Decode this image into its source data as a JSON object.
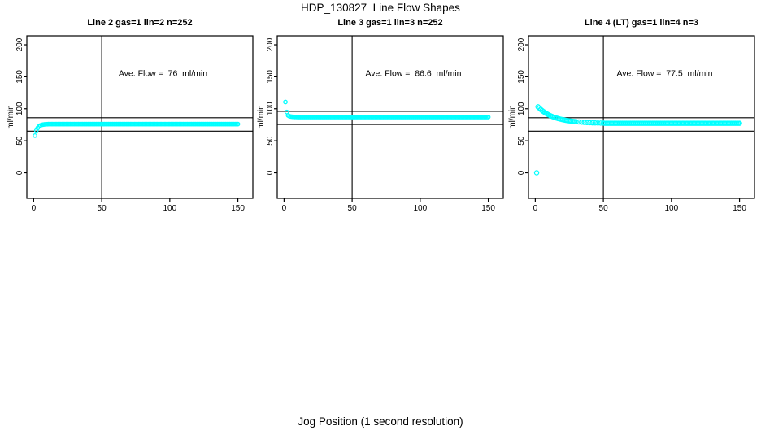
{
  "figure": {
    "title": "HDP_130827  Line Flow Shapes",
    "xlabel": "Jog Position (1 second resolution)",
    "background_color": "#ffffff",
    "point_color": "#00ffff",
    "axis_color": "#000000"
  },
  "chart_data": [
    {
      "type": "scatter",
      "title": "Line 2 gas=1 lin=2 n=252",
      "ylabel": "ml/min",
      "annotation": "Ave. Flow =  76  ml/min",
      "ave_flow_ml_min": 76,
      "n": 252,
      "xlim": [
        -5,
        161
      ],
      "ylim": [
        -40,
        214
      ],
      "xticks": [
        0,
        50,
        100,
        150
      ],
      "yticks": [
        0,
        50,
        100,
        150,
        200
      ],
      "vline_x": 50,
      "hlines": [
        86,
        65
      ],
      "point_radius": 2.2,
      "annotation_pos": [
        95,
        151
      ],
      "points": [
        [
          1,
          58
        ],
        [
          2,
          66
        ],
        [
          3,
          70
        ],
        [
          4,
          72.5
        ],
        [
          5,
          74
        ],
        [
          6,
          74.8
        ],
        [
          7,
          75.3
        ],
        [
          8,
          75.6
        ],
        [
          9,
          75.8
        ],
        [
          10,
          75.9
        ]
      ],
      "runs": [
        {
          "x_from": 11,
          "x_to": 150,
          "x_step": 1,
          "y": 76
        }
      ]
    },
    {
      "type": "scatter",
      "title": "Line 3 gas=1 lin=3 n=252",
      "ylabel": "ml/min",
      "annotation": "Ave. Flow =  86.6  ml/min",
      "ave_flow_ml_min": 86.6,
      "n": 252,
      "xlim": [
        -5,
        161
      ],
      "ylim": [
        -40,
        214
      ],
      "xticks": [
        0,
        50,
        100,
        150
      ],
      "yticks": [
        0,
        50,
        100,
        150,
        200
      ],
      "vline_x": 50,
      "hlines": [
        96,
        75.5
      ],
      "point_radius": 2.2,
      "annotation_pos": [
        95,
        151
      ],
      "points": [
        [
          1,
          110.5
        ],
        [
          2,
          95
        ],
        [
          3,
          89.5
        ],
        [
          4,
          88.3
        ],
        [
          5,
          87.8
        ],
        [
          6,
          87.5
        ],
        [
          7,
          87.3
        ],
        [
          8,
          87.2
        ],
        [
          9,
          87.1
        ],
        [
          10,
          87
        ],
        [
          11,
          87
        ]
      ],
      "runs": [
        {
          "x_from": 12,
          "x_to": 150,
          "x_step": 1,
          "y": 87
        }
      ]
    },
    {
      "type": "scatter",
      "title": "Line 4 (LT) gas=1 lin=4 n=3",
      "ylabel": "ml/min",
      "annotation": "Ave. Flow =  77.5  ml/min",
      "ave_flow_ml_min": 77.5,
      "n": 3,
      "xlim": [
        -5,
        161
      ],
      "ylim": [
        -40,
        214
      ],
      "xticks": [
        0,
        50,
        100,
        150
      ],
      "yticks": [
        0,
        50,
        100,
        150,
        200
      ],
      "vline_x": 50,
      "hlines": [
        86,
        65
      ],
      "point_radius": 2.6,
      "annotation_pos": [
        95,
        151
      ],
      "points": [
        [
          1,
          0
        ],
        [
          2,
          103
        ],
        [
          3,
          101
        ],
        [
          4,
          99
        ],
        [
          5,
          97.2
        ],
        [
          6,
          95.6
        ],
        [
          7,
          94.1
        ],
        [
          8,
          92.8
        ],
        [
          9,
          91.5
        ],
        [
          10,
          90.3
        ],
        [
          11,
          89.3
        ],
        [
          12,
          88.3
        ],
        [
          13,
          87.4
        ],
        [
          14,
          86.6
        ],
        [
          15,
          85.9
        ],
        [
          16,
          85.2
        ],
        [
          17,
          84.6
        ],
        [
          18,
          84
        ],
        [
          19,
          83.5
        ],
        [
          20,
          83
        ],
        [
          21,
          82.5
        ],
        [
          22,
          82.1
        ],
        [
          23,
          81.7
        ],
        [
          24,
          81.4
        ],
        [
          25,
          81.1
        ],
        [
          26,
          80.8
        ],
        [
          27,
          80.5
        ],
        [
          28,
          80.2
        ],
        [
          29,
          80
        ],
        [
          30,
          79.8
        ],
        [
          32,
          79.4
        ],
        [
          34,
          79
        ],
        [
          36,
          78.7
        ],
        [
          38,
          78.4
        ],
        [
          40,
          78.2
        ],
        [
          42,
          78
        ],
        [
          44,
          77.9
        ],
        [
          46,
          77.8
        ],
        [
          48,
          77.7
        ],
        [
          50,
          77.6
        ]
      ],
      "runs": [
        {
          "x_from": 51,
          "x_to": 150,
          "x_step": 1,
          "y": 77.3
        }
      ]
    }
  ]
}
